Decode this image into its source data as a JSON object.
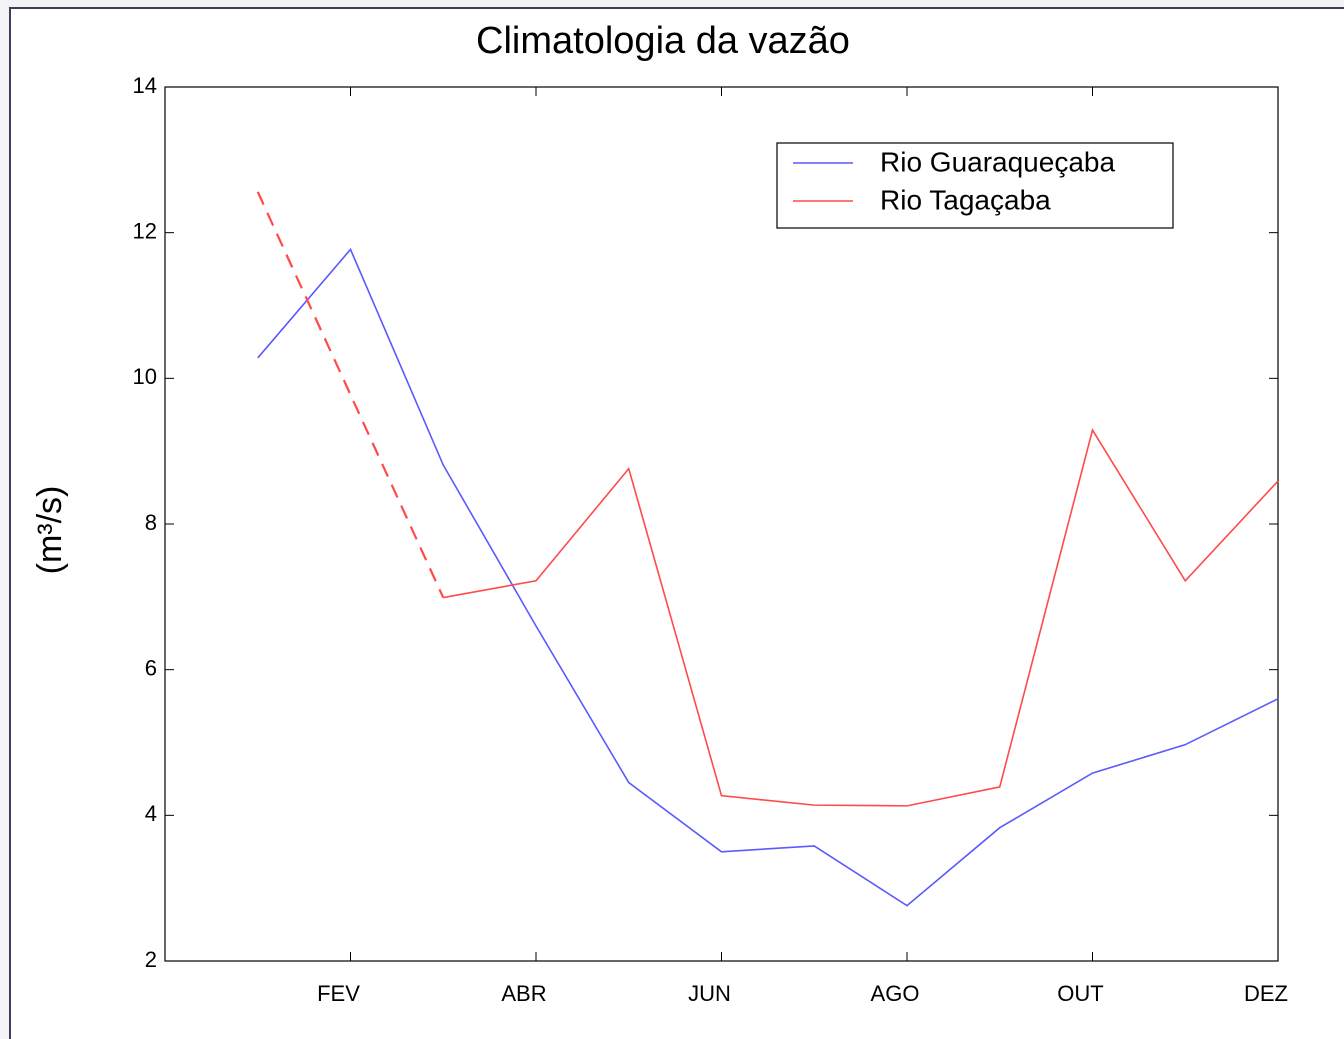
{
  "chart_data": {
    "type": "line",
    "title": "Climatologia da vazão",
    "ylabel": "(m³/s)",
    "categories": [
      null,
      "FEV",
      null,
      "ABR",
      null,
      "JUN",
      null,
      "AGO",
      null,
      "OUT",
      null,
      "DEZ"
    ],
    "series": [
      {
        "name": "Rio Guaraqueçaba",
        "color": "#5a5aff",
        "values": [
          10.28,
          11.77,
          8.81,
          6.6,
          4.45,
          3.5,
          3.58,
          2.76,
          3.83,
          4.58,
          4.97,
          5.6
        ]
      },
      {
        "name": "Rio Tagaçaba",
        "color": "#ff4a4a",
        "values": [
          12.56,
          null,
          6.99,
          7.22,
          8.76,
          4.27,
          4.14,
          4.13,
          4.39,
          9.29,
          7.22,
          8.59
        ]
      }
    ],
    "gap_style": "dashed",
    "ylim": [
      2,
      14
    ],
    "yticks": [
      2,
      4,
      6,
      8,
      10,
      12,
      14
    ],
    "grid": false,
    "legend": "upper right"
  }
}
